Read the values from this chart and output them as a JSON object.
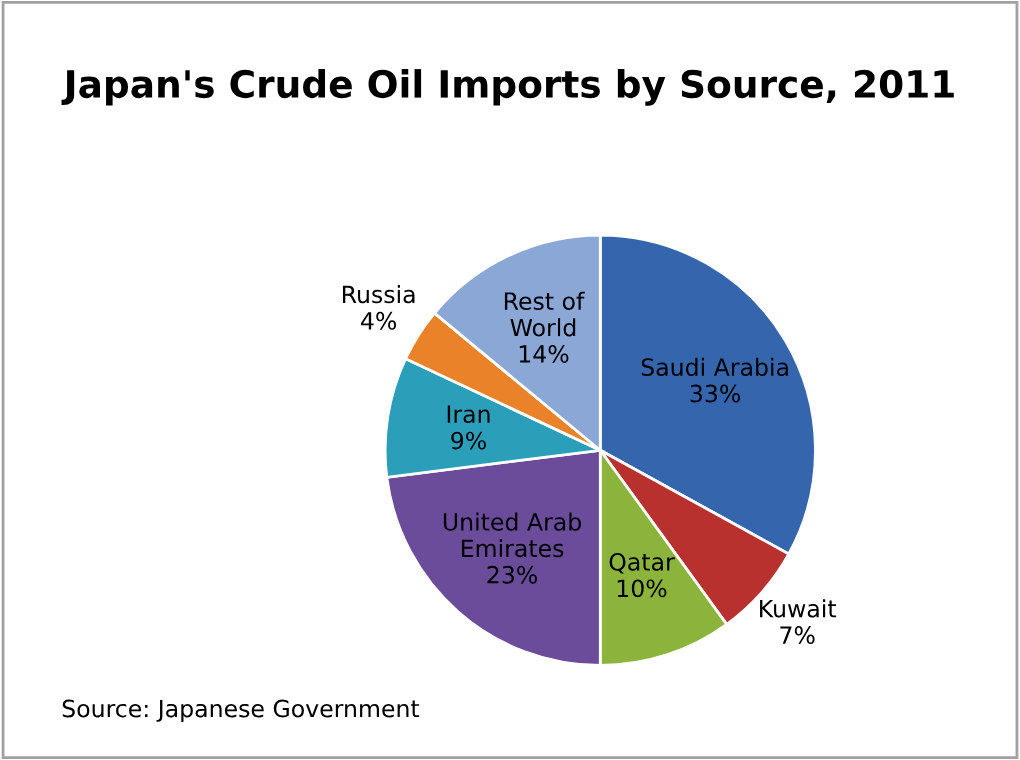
{
  "chart_data": {
    "type": "pie",
    "title": "Japan's Crude Oil Imports by Source, 2011",
    "categories": [
      "Saudi Arabia",
      "Kuwait",
      "Qatar",
      "United Arab\nEmirates",
      "Iran",
      "Russia",
      "Rest of\nWorld"
    ],
    "values": [
      33,
      7,
      10,
      23,
      9,
      4,
      14
    ],
    "value_labels": [
      "33%",
      "7%",
      "10%",
      "23%",
      "9%",
      "4%",
      "14%"
    ],
    "colors": [
      "#3566ad",
      "#b8312f",
      "#8cb43c",
      "#6b4c9a",
      "#2b9fba",
      "#e98229",
      "#8aa7d6"
    ],
    "annotations": [
      "Source: Japanese Government"
    ]
  }
}
